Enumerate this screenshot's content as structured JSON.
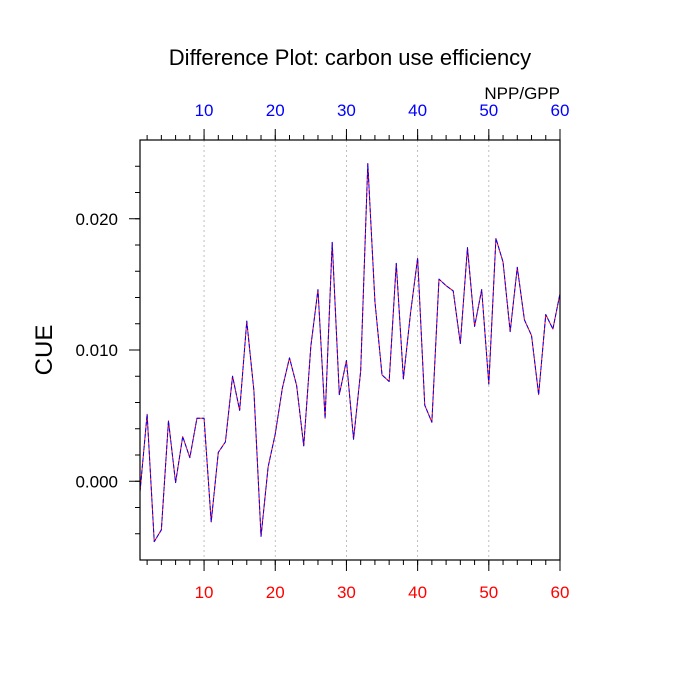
{
  "chart_data": {
    "type": "line",
    "title": "Difference Plot: carbon use efficiency",
    "ylabel": "CUE",
    "top_axis_label": "NPP/GPP",
    "xlim": [
      1,
      60
    ],
    "ylim": [
      -0.006,
      0.026
    ],
    "bottom_ticks": [
      10,
      20,
      30,
      40,
      50,
      60
    ],
    "top_ticks": [
      10,
      20,
      30,
      40,
      50,
      60
    ],
    "y_ticks": [
      0.0,
      0.01,
      0.02
    ],
    "y_tick_labels": [
      "0.000",
      "0.010",
      "0.020"
    ],
    "grid": "vertical dotted at major x ticks",
    "colors": {
      "bottom_tick_labels": "#ff0000",
      "top_tick_labels": "#0000ff",
      "series_a": "#ff0000",
      "series_b": "#0000ff"
    },
    "x": [
      1,
      2,
      3,
      4,
      5,
      6,
      7,
      8,
      9,
      10,
      11,
      12,
      13,
      14,
      15,
      16,
      17,
      18,
      19,
      20,
      21,
      22,
      23,
      24,
      25,
      26,
      27,
      28,
      29,
      30,
      31,
      32,
      33,
      34,
      35,
      36,
      37,
      38,
      39,
      40,
      41,
      42,
      43,
      44,
      45,
      46,
      47,
      48,
      49,
      50,
      51,
      52,
      53,
      54,
      55,
      56,
      57,
      58,
      59,
      60
    ],
    "series": [
      {
        "values": [
          -0.0008,
          0.0051,
          -0.0046,
          -0.0037,
          0.0046,
          -0.0001,
          0.0034,
          0.0018,
          0.0048,
          0.0048,
          -0.0031,
          0.0022,
          0.003,
          0.008,
          0.0054,
          0.0122,
          0.0069,
          -0.0042,
          0.0011,
          0.0036,
          0.0071,
          0.0094,
          0.0073,
          0.0027,
          0.0103,
          0.0146,
          0.0048,
          0.0182,
          0.0066,
          0.0092,
          0.0032,
          0.0084,
          0.0242,
          0.0137,
          0.0081,
          0.0076,
          0.0166,
          0.0078,
          0.0128,
          0.017,
          0.0058,
          0.0045,
          0.0154,
          0.0149,
          0.0145,
          0.0105,
          0.0178,
          0.0118,
          0.0146,
          0.0074,
          0.0185,
          0.0167,
          0.0114,
          0.0163,
          0.0123,
          0.0111,
          0.0066,
          0.0127,
          0.0116,
          0.0143
        ]
      }
    ]
  }
}
